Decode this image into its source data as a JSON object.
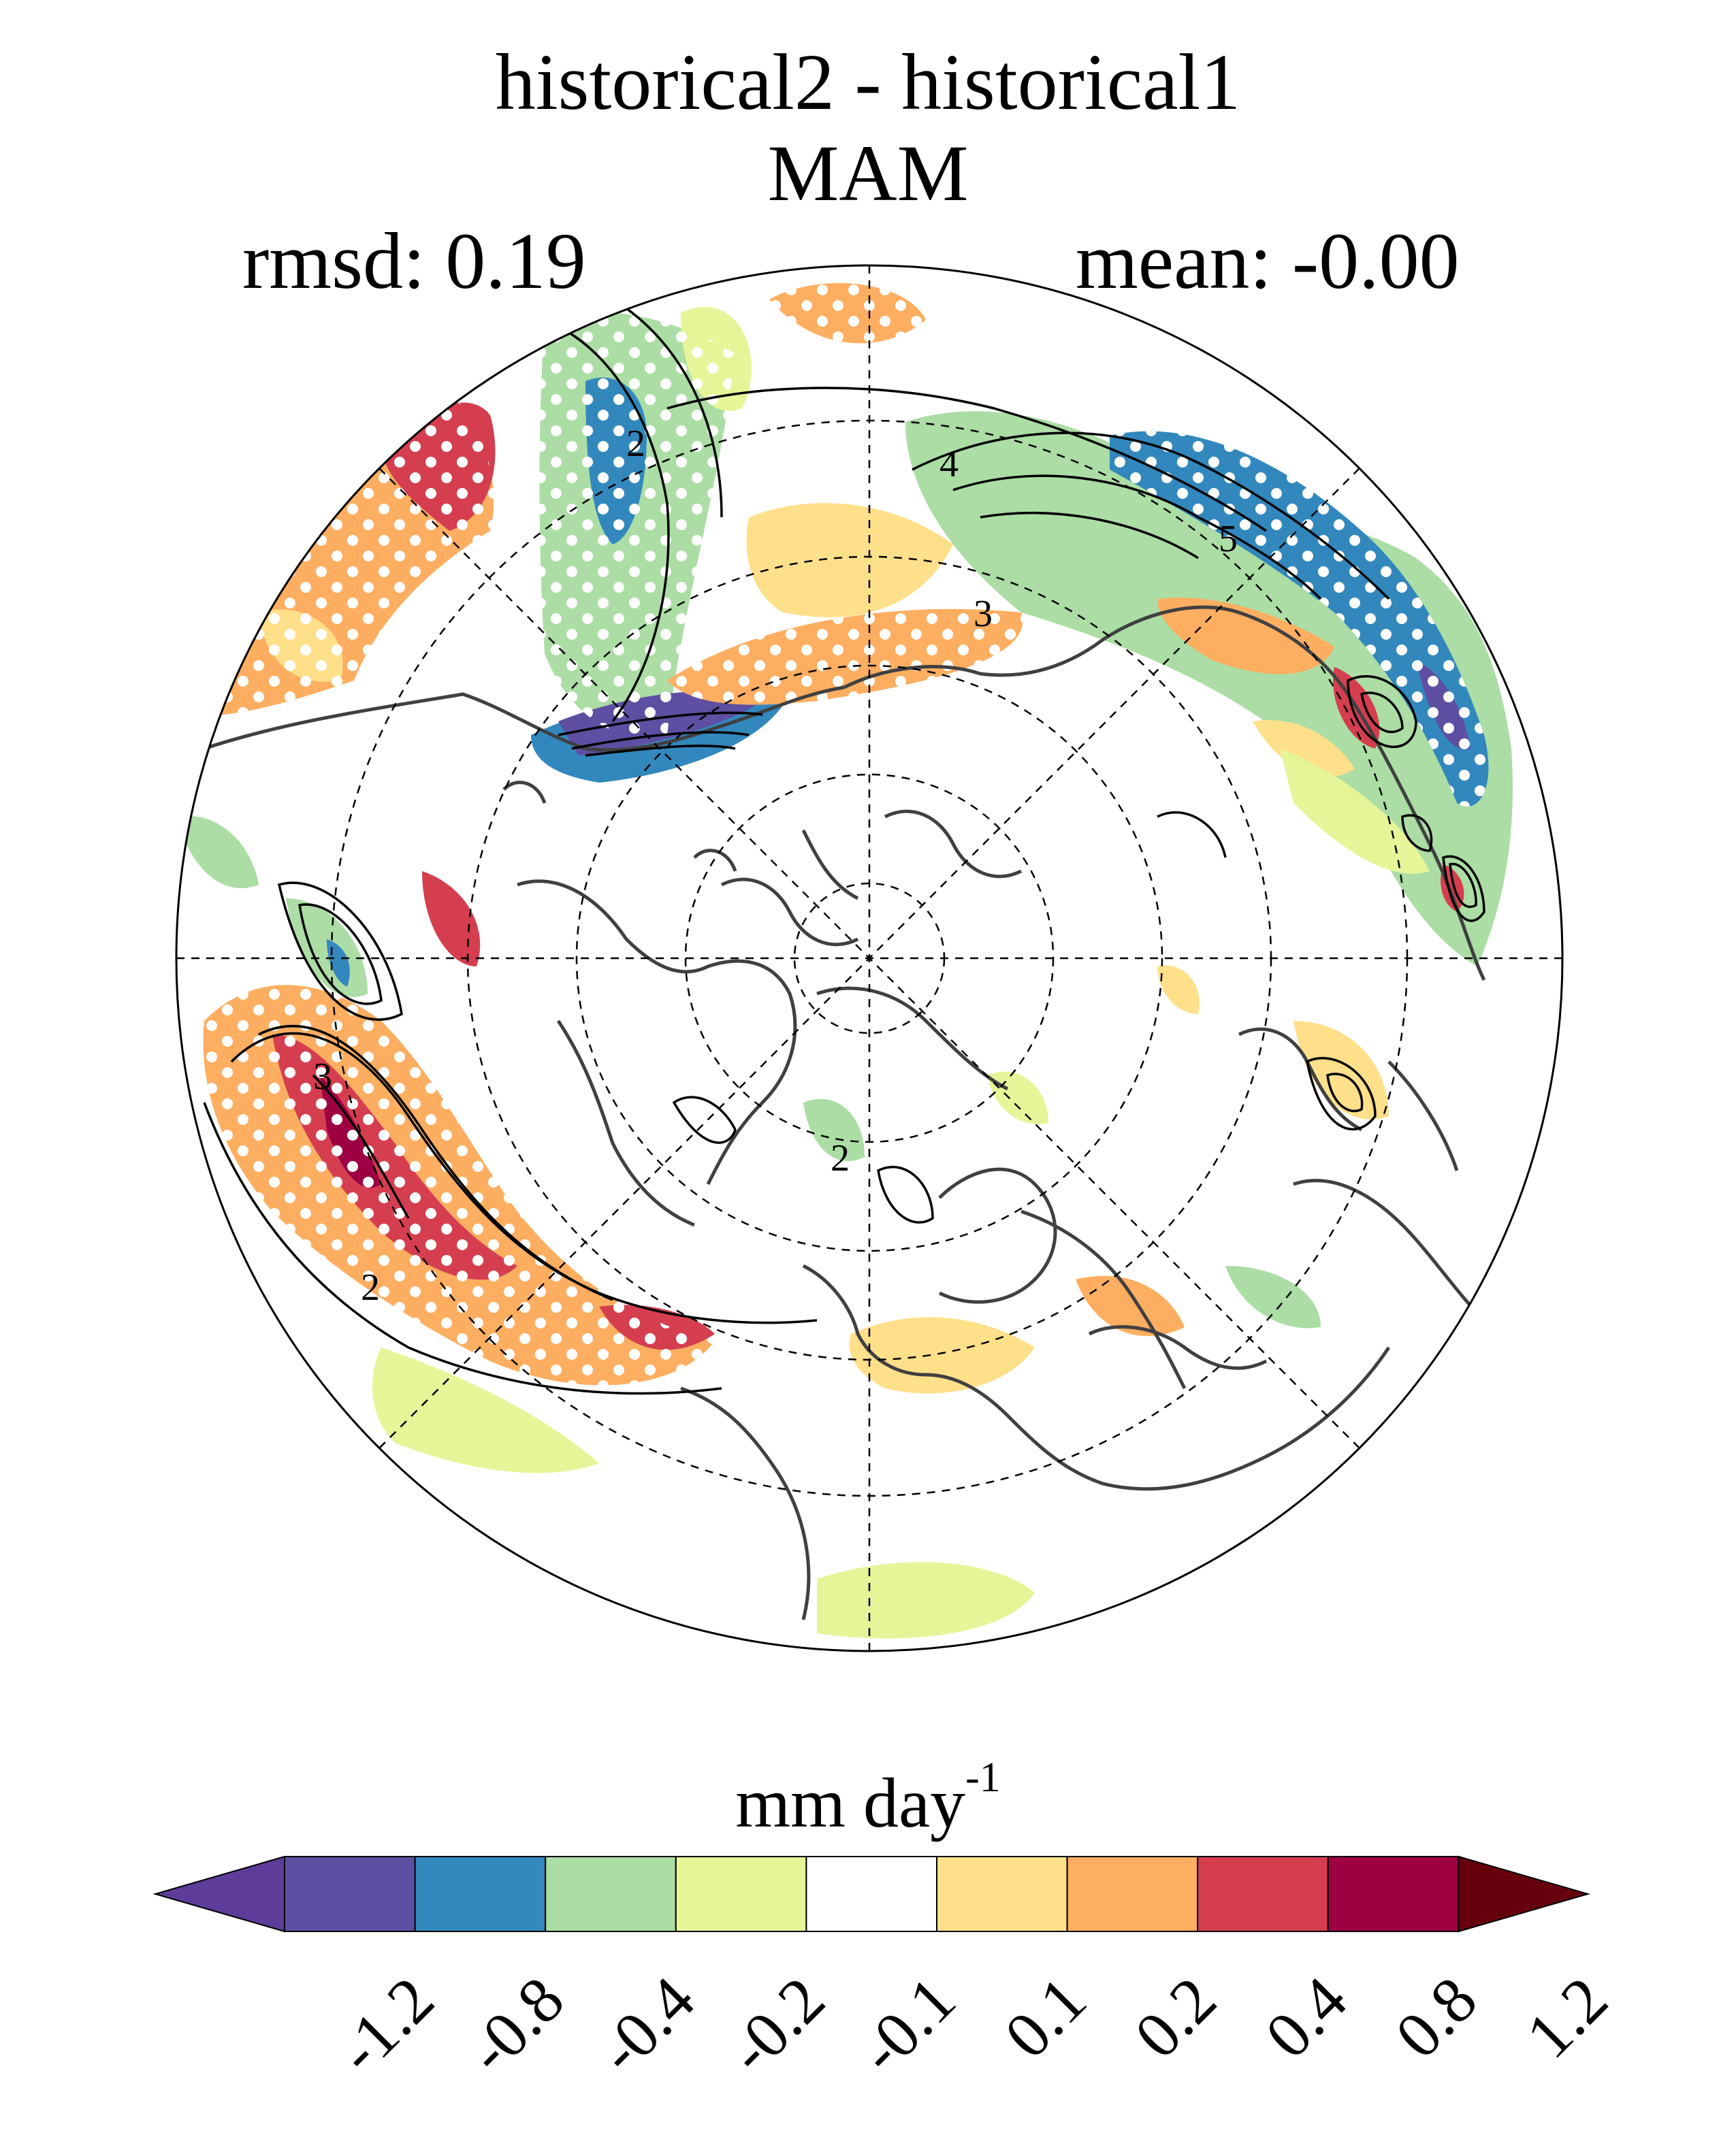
{
  "title": "historical2 - historical1",
  "season": "MAM",
  "rmsd_label": "rmsd: 0.19",
  "mean_label": "mean: -0.00",
  "units": {
    "base": "mm day",
    "exponent": "-1"
  },
  "colorbar": {
    "colors": [
      "#5e3c99",
      "#5e4fa2",
      "#3288bd",
      "#abdda4",
      "#e6f598",
      "#ffffff",
      "#fee08b",
      "#fdae61",
      "#d53e4f",
      "#9e0142",
      "#67000d"
    ],
    "ticks": [
      "-1.2",
      "-0.8",
      "-0.4",
      "-0.2",
      "-0.1",
      "0.1",
      "0.2",
      "0.4",
      "0.8",
      "1.2"
    ]
  },
  "contour_labels": [
    "2",
    "4",
    "5",
    "3",
    "3",
    "2",
    "2"
  ],
  "map": {
    "projection": "north-polar-stereographic",
    "field": "precipitation difference",
    "stippling": "significance dots"
  }
}
